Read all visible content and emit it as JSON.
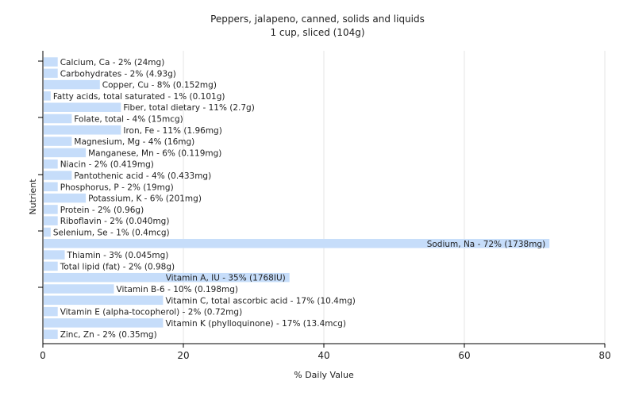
{
  "chart_data": {
    "type": "bar",
    "orientation": "horizontal",
    "title": "Peppers, jalapeno, canned, solids and liquids",
    "subtitle": "1 cup, sliced (104g)",
    "xlabel": "% Daily Value",
    "ylabel": "Nutrient",
    "xlim": [
      0,
      80
    ],
    "xticks": [
      "0",
      "20",
      "40",
      "60",
      "80"
    ],
    "grid": true,
    "legend": "none",
    "bar_color": "#c6ddfa",
    "grid_color": "#e6e6e6",
    "categories": [
      "Calcium, Ca",
      "Carbohydrates",
      "Copper, Cu",
      "Fatty acids, total saturated",
      "Fiber, total dietary",
      "Folate, total",
      "Iron, Fe",
      "Magnesium, Mg",
      "Manganese, Mn",
      "Niacin",
      "Pantothenic acid",
      "Phosphorus, P",
      "Potassium, K",
      "Protein",
      "Riboflavin",
      "Selenium, Se",
      "Sodium, Na",
      "Thiamin",
      "Total lipid (fat)",
      "Vitamin A, IU",
      "Vitamin B-6",
      "Vitamin C, total ascorbic acid",
      "Vitamin E (alpha-tocopherol)",
      "Vitamin K (phylloquinone)",
      "Zinc, Zn"
    ],
    "values": [
      2,
      2,
      8,
      1,
      11,
      4,
      11,
      4,
      6,
      2,
      4,
      2,
      6,
      2,
      2,
      1,
      72,
      3,
      2,
      35,
      10,
      17,
      2,
      17,
      2
    ],
    "labels": [
      "Calcium, Ca - 2% (24mg)",
      "Carbohydrates - 2% (4.93g)",
      "Copper, Cu - 8% (0.152mg)",
      "Fatty acids, total saturated - 1% (0.101g)",
      "Fiber, total dietary - 11% (2.7g)",
      "Folate, total - 4% (15mcg)",
      "Iron, Fe - 11% (1.96mg)",
      "Magnesium, Mg - 4% (16mg)",
      "Manganese, Mn - 6% (0.119mg)",
      "Niacin - 2% (0.419mg)",
      "Pantothenic acid - 4% (0.433mg)",
      "Phosphorus, P - 2% (19mg)",
      "Potassium, K - 6% (201mg)",
      "Protein - 2% (0.96g)",
      "Riboflavin - 2% (0.040mg)",
      "Selenium, Se - 1% (0.4mcg)",
      "Sodium, Na - 72% (1738mg)",
      "Thiamin - 3% (0.045mg)",
      "Total lipid (fat) - 2% (0.98g)",
      "Vitamin A, IU - 35% (1768IU)",
      "Vitamin B-6 - 10% (0.198mg)",
      "Vitamin C, total ascorbic acid - 17% (10.4mg)",
      "Vitamin E (alpha-tocopherol) - 2% (0.72mg)",
      "Vitamin K (phylloquinone) - 17% (13.4mcg)",
      "Zinc, Zn - 2% (0.35mg)"
    ]
  }
}
